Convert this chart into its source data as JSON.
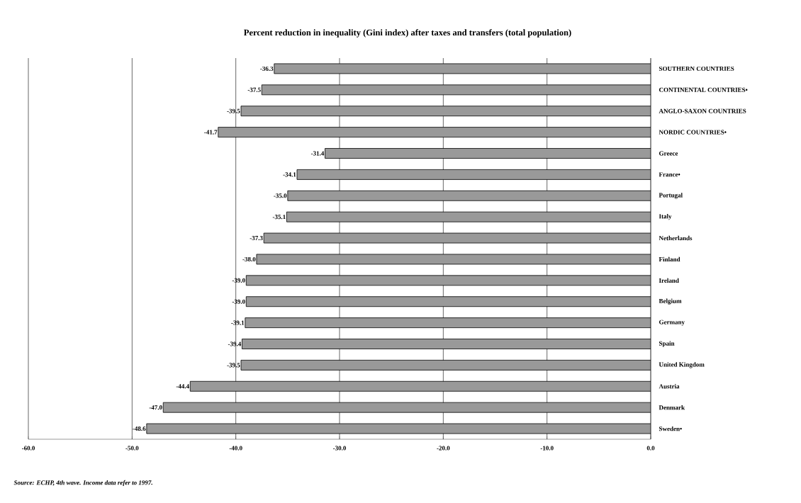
{
  "chart_data": {
    "type": "bar",
    "orientation": "horizontal",
    "title": "Percent reduction in inequality (Gini index) after taxes and transfers (total population)",
    "categories": [
      "SOUTHERN COUNTRIES",
      "CONTINENTAL COUNTRIES•",
      "ANGLO-SAXON COUNTRIES",
      "NORDIC COUNTRIES•",
      "Greece",
      "France•",
      "Portugal",
      "Italy",
      "Netherlands",
      "Finland",
      "Ireland",
      "Belgium",
      "Germany",
      "Spain",
      "United Kingdom",
      "Austria",
      "Denmark",
      "Sweden•"
    ],
    "values": [
      -36.3,
      -37.5,
      -39.5,
      -41.7,
      -31.4,
      -34.1,
      -35.0,
      -35.1,
      -37.3,
      -38.0,
      -39.0,
      -39.0,
      -39.1,
      -39.4,
      -39.5,
      -44.4,
      -47.0,
      -48.6
    ],
    "value_labels": [
      "-36.3",
      "-37.5",
      "-39.5",
      "-41.7",
      "-31.4",
      "-34.1",
      "-35.0",
      "-35.1",
      "-37.3",
      "-38.0",
      "-39.0",
      "-39.0",
      "-39.1",
      "-39.4",
      "-39.5",
      "-44.4",
      "-47.0",
      "-48.6"
    ],
    "color": "#999999",
    "xlim": [
      -60,
      0
    ],
    "xticks": [
      {
        "value": -60,
        "label": "-60.0"
      },
      {
        "value": -50,
        "label": "-50.0"
      },
      {
        "value": -40,
        "label": "-40.0"
      },
      {
        "value": -30,
        "label": "-30.0"
      },
      {
        "value": -20,
        "label": "-20.0"
      },
      {
        "value": -10,
        "label": "-10.0"
      },
      {
        "value": 0,
        "label": "0.0"
      }
    ],
    "grid": "x",
    "annotations": [
      "*Source: ECHP, 4th wave. Income data refer to 1997.*"
    ]
  }
}
